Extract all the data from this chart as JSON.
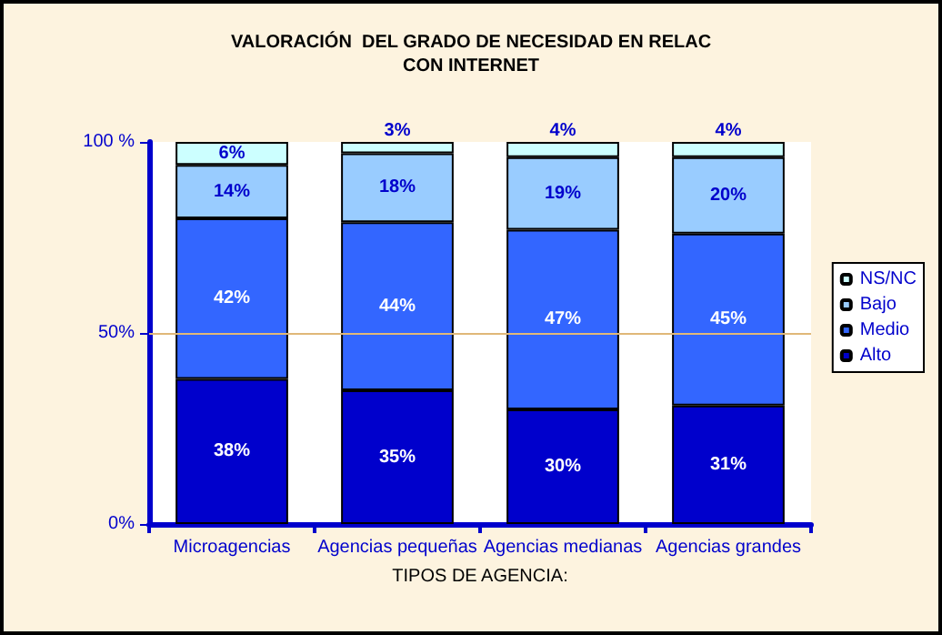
{
  "chart_data": {
    "type": "bar",
    "title": "VALORACIÓN  DEL GRADO DE NECESIDAD EN RELAC\nCON INTERNET",
    "xlabel": "TIPOS DE AGENCIA:",
    "stacked": true,
    "categories": [
      "Microagencias",
      "Agencias pequeñas",
      "Agencias medianas",
      "Agencias grandes"
    ],
    "series": [
      {
        "name": "Alto",
        "color": "#0000cc",
        "values": [
          38,
          35,
          30,
          31
        ],
        "value_labels": [
          "38%",
          "35%",
          "30%",
          "31%"
        ]
      },
      {
        "name": "Medio",
        "color": "#3366ff",
        "values": [
          42,
          44,
          47,
          45
        ],
        "value_labels": [
          "42%",
          "44%",
          "47%",
          "45%"
        ]
      },
      {
        "name": "Bajo",
        "color": "#99ccff",
        "values": [
          14,
          18,
          19,
          20
        ],
        "value_labels": [
          "14%",
          "18%",
          "19%",
          "20%"
        ]
      },
      {
        "name": "NS/NC",
        "color": "#ccffff",
        "values": [
          6,
          3,
          4,
          4
        ],
        "value_labels": [
          "6%",
          "3%",
          "4%",
          "4%"
        ]
      }
    ],
    "ylim": [
      0,
      100
    ],
    "yticks": [
      {
        "value": 0,
        "label": "0%"
      },
      {
        "value": 50,
        "label": "50%"
      },
      {
        "value": 100,
        "label": "100 %"
      }
    ],
    "ref_lines": [
      {
        "axis": "y",
        "value": 50,
        "color": "#e0b878"
      }
    ],
    "legend": "right"
  }
}
